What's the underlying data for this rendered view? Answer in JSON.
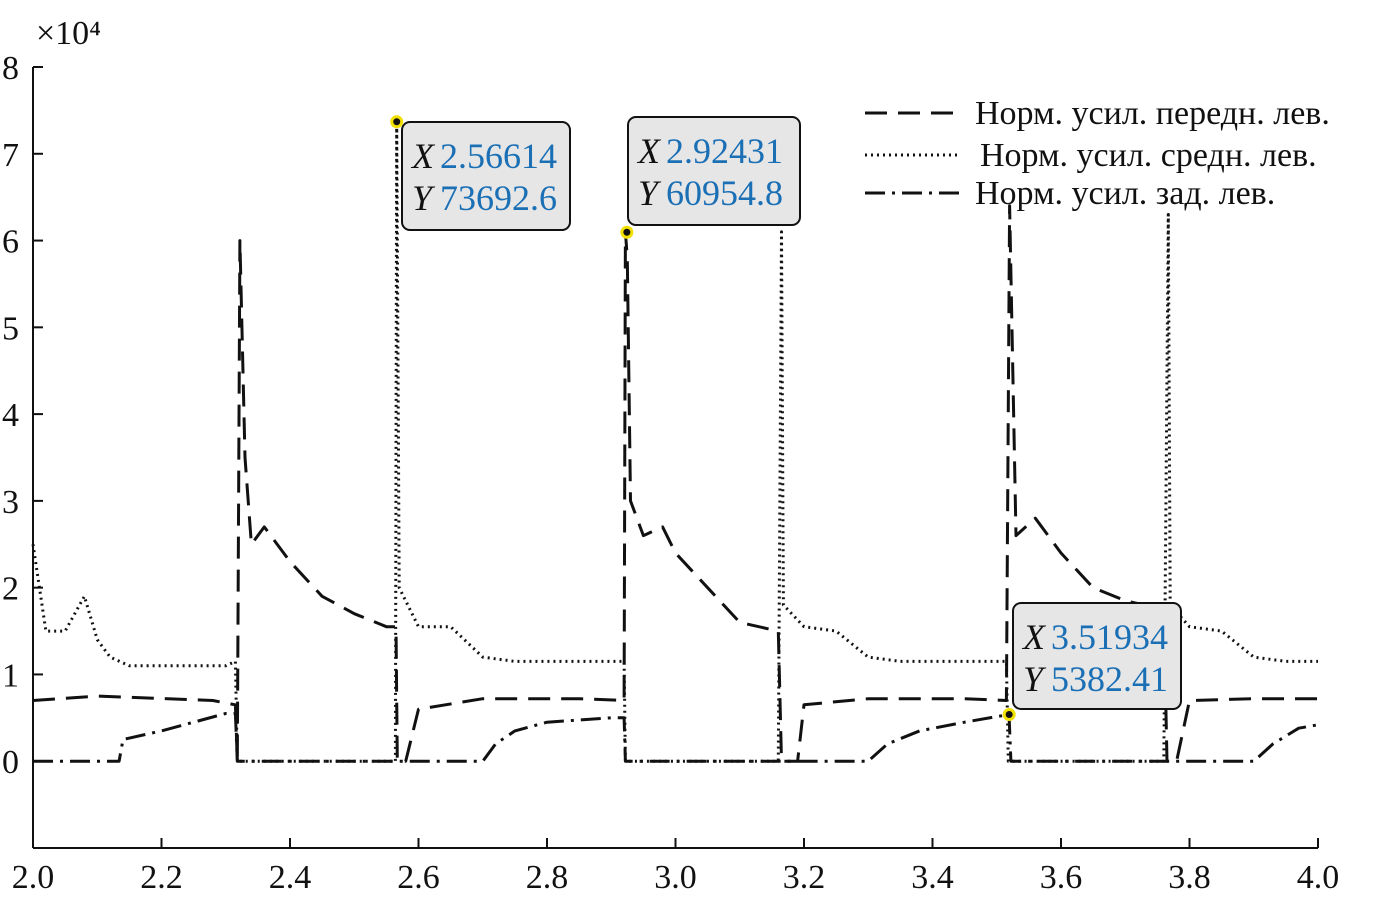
{
  "chart_data": {
    "type": "line",
    "title": "",
    "xlabel": "",
    "ylabel": "",
    "y_exponent_label": "×10⁴",
    "xlim": [
      2.0,
      4.0
    ],
    "ylim": [
      -1,
      8
    ],
    "y_scale_factor": 10000,
    "x_ticks": [
      "2.0",
      "2.2",
      "2.4",
      "2.6",
      "2.8",
      "3.0",
      "3.2",
      "3.4",
      "3.6",
      "3.8",
      "4.0"
    ],
    "y_ticks": [
      "0",
      "1",
      "2",
      "3",
      "4",
      "5",
      "6",
      "7",
      "8"
    ],
    "grid": false,
    "legend_position": "top-right",
    "series": [
      {
        "name": "Норм. усил. передн. лев.",
        "style": "dashed",
        "x": [
          2.0,
          2.1,
          2.28,
          2.315,
          2.318,
          2.322,
          2.33,
          2.34,
          2.36,
          2.4,
          2.45,
          2.5,
          2.55,
          2.565,
          2.567,
          2.58,
          2.6,
          2.7,
          2.85,
          2.92,
          2.922,
          2.925,
          2.93,
          2.95,
          2.98,
          3.0,
          3.05,
          3.1,
          3.16,
          3.165,
          3.18,
          3.19,
          3.2,
          3.3,
          3.45,
          3.515,
          3.52,
          3.53,
          3.56,
          3.6,
          3.65,
          3.7,
          3.76,
          3.765,
          3.78,
          3.8,
          3.9,
          4.0
        ],
        "y": [
          0.7,
          0.75,
          0.7,
          0.65,
          0.0,
          6.0,
          3.5,
          2.5,
          2.7,
          2.3,
          1.9,
          1.7,
          1.55,
          1.55,
          0.0,
          0.0,
          0.6,
          0.72,
          0.72,
          0.7,
          6.1,
          5.8,
          3.0,
          2.6,
          2.7,
          2.4,
          2.0,
          1.6,
          1.5,
          0.0,
          0.0,
          0.0,
          0.65,
          0.72,
          0.72,
          0.7,
          6.4,
          2.6,
          2.8,
          2.4,
          2.0,
          1.85,
          1.75,
          0.0,
          0.0,
          0.7,
          0.72,
          0.72
        ]
      },
      {
        "name": "Норм. усил. средн. лев.",
        "style": "dotted",
        "x": [
          2.0,
          2.02,
          2.05,
          2.08,
          2.1,
          2.12,
          2.15,
          2.2,
          2.3,
          2.315,
          2.318,
          2.4,
          2.5,
          2.564,
          2.566,
          2.57,
          2.6,
          2.65,
          2.7,
          2.75,
          2.9,
          2.92,
          2.922,
          3.0,
          3.1,
          3.16,
          3.165,
          3.168,
          3.2,
          3.25,
          3.3,
          3.35,
          3.5,
          3.515,
          3.518,
          3.6,
          3.7,
          3.76,
          3.767,
          3.77,
          3.8,
          3.85,
          3.9,
          3.95,
          4.0
        ],
        "y": [
          2.5,
          1.5,
          1.5,
          1.9,
          1.4,
          1.2,
          1.1,
          1.1,
          1.1,
          1.15,
          0.0,
          0.0,
          0.0,
          0.0,
          7.37,
          2.0,
          1.55,
          1.55,
          1.2,
          1.15,
          1.15,
          1.15,
          0.0,
          0.0,
          0.0,
          0.0,
          6.1,
          1.8,
          1.55,
          1.5,
          1.2,
          1.15,
          1.15,
          1.15,
          0.0,
          0.0,
          0.0,
          0.0,
          6.3,
          1.8,
          1.55,
          1.5,
          1.2,
          1.15,
          1.15
        ]
      },
      {
        "name": "Норм. усил. зад. лев.",
        "style": "dashdot",
        "x": [
          2.0,
          2.05,
          2.1,
          2.134,
          2.14,
          2.2,
          2.3,
          2.315,
          2.318,
          2.4,
          2.5,
          2.566,
          2.6,
          2.7,
          2.72,
          2.75,
          2.8,
          2.9,
          2.92,
          2.922,
          3.0,
          3.1,
          3.165,
          3.2,
          3.3,
          3.33,
          3.38,
          3.45,
          3.519,
          3.522,
          3.6,
          3.7,
          3.767,
          3.8,
          3.9,
          3.93,
          3.97,
          4.0
        ],
        "y": [
          0.0,
          0.0,
          0.0,
          0.0,
          0.25,
          0.35,
          0.55,
          0.55,
          0.0,
          0.0,
          0.0,
          0.0,
          0.0,
          0.0,
          0.2,
          0.35,
          0.45,
          0.5,
          0.5,
          0.0,
          0.0,
          0.0,
          0.0,
          0.0,
          0.0,
          0.2,
          0.35,
          0.45,
          0.538,
          0.0,
          0.0,
          0.0,
          0.0,
          0.0,
          0.0,
          0.2,
          0.38,
          0.42
        ]
      }
    ],
    "datatips": [
      {
        "x_label": "X",
        "y_label": "Y",
        "x": "2.56614",
        "y": "73692.6",
        "px": 2.56614,
        "py": 7.36926
      },
      {
        "x_label": "X",
        "y_label": "Y",
        "x": "2.92431",
        "y": "60954.8",
        "px": 2.92431,
        "py": 6.09548
      },
      {
        "x_label": "X",
        "y_label": "Y",
        "x": "3.51934",
        "y": "5382.41",
        "px": 3.51934,
        "py": 0.538241
      }
    ]
  }
}
